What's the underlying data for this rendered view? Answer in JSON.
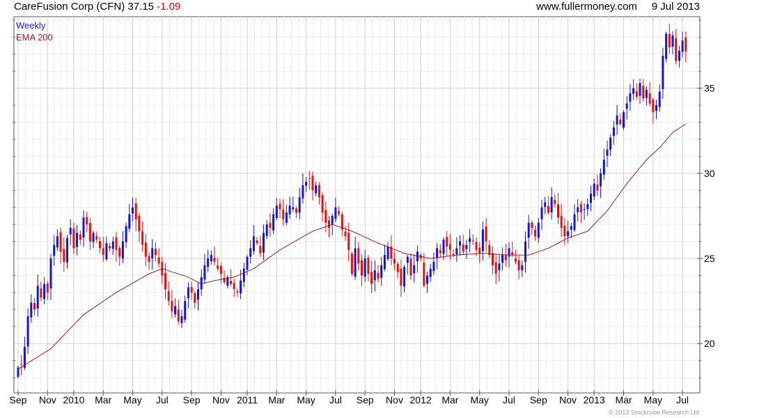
{
  "header": {
    "company": "CareFusion Corp (CFN)",
    "price": "37.15",
    "change": "-1.09",
    "website": "www.fullermoney.com",
    "date": "9 Jul 2013"
  },
  "legend": {
    "period": "Weekly",
    "indicator": "EMA 200"
  },
  "copyright": "© 2013 Stockcube Research Ltd",
  "colors": {
    "up": "#1414d2",
    "down": "#e01414",
    "ema": "#9c1c1c",
    "grid": "#cfcfcf",
    "minor_grid": "#ececec"
  },
  "chart_data": {
    "type": "candlestick",
    "period": "Weekly",
    "ylim": [
      17.1,
      39.2
    ],
    "y_ticks": [
      20,
      25,
      30,
      35
    ],
    "y_axis_side": "right",
    "grid": true,
    "x_ticks": [
      {
        "label": "Sep",
        "week": 0
      },
      {
        "label": "Nov",
        "week": 9
      },
      {
        "label": "2010",
        "week": 17
      },
      {
        "label": "Mar",
        "week": 26
      },
      {
        "label": "May",
        "week": 35
      },
      {
        "label": "Jul",
        "week": 44
      },
      {
        "label": "Sep",
        "week": 53
      },
      {
        "label": "Nov",
        "week": 62
      },
      {
        "label": "2011",
        "week": 70
      },
      {
        "label": "Mar",
        "week": 79
      },
      {
        "label": "May",
        "week": 88
      },
      {
        "label": "Jul",
        "week": 97
      },
      {
        "label": "Sep",
        "week": 106
      },
      {
        "label": "Nov",
        "week": 115
      },
      {
        "label": "2012",
        "week": 123
      },
      {
        "label": "Mar",
        "week": 132
      },
      {
        "label": "May",
        "week": 141
      },
      {
        "label": "Jul",
        "week": 150
      },
      {
        "label": "Sep",
        "week": 159
      },
      {
        "label": "Nov",
        "week": 168
      },
      {
        "label": "2013",
        "week": 176
      },
      {
        "label": "Mar",
        "week": 185
      },
      {
        "label": "May",
        "week": 194
      },
      {
        "label": "Jul",
        "week": 203
      }
    ],
    "close_anchors": [
      [
        0,
        18.6
      ],
      [
        1,
        18.8
      ],
      [
        2,
        19.8
      ],
      [
        3,
        21.6
      ],
      [
        4,
        22.4
      ],
      [
        5,
        22.0
      ],
      [
        6,
        23.4
      ],
      [
        7,
        22.7
      ],
      [
        8,
        23.5
      ],
      [
        9,
        23.0
      ],
      [
        10,
        25.0
      ],
      [
        11,
        25.8
      ],
      [
        12,
        26.3
      ],
      [
        13,
        25.4
      ],
      [
        14,
        24.8
      ],
      [
        15,
        26.2
      ],
      [
        16,
        26.8
      ],
      [
        17,
        25.6
      ],
      [
        18,
        26.5
      ],
      [
        19,
        26.1
      ],
      [
        20,
        27.4
      ],
      [
        21,
        27.0
      ],
      [
        22,
        26.0
      ],
      [
        23,
        26.5
      ],
      [
        24,
        26.1
      ],
      [
        25,
        25.6
      ],
      [
        26,
        25.2
      ],
      [
        27,
        25.9
      ],
      [
        28,
        25.6
      ],
      [
        29,
        26.0
      ],
      [
        30,
        25.5
      ],
      [
        31,
        25.1
      ],
      [
        32,
        26.0
      ],
      [
        33,
        26.9
      ],
      [
        34,
        27.6
      ],
      [
        35,
        28.0
      ],
      [
        36,
        27.3
      ],
      [
        37,
        26.6
      ],
      [
        38,
        25.8
      ],
      [
        39,
        25.1
      ],
      [
        40,
        24.8
      ],
      [
        41,
        25.6
      ],
      [
        42,
        25.2
      ],
      [
        43,
        24.7
      ],
      [
        44,
        24.0
      ],
      [
        45,
        23.2
      ],
      [
        46,
        22.5
      ],
      [
        47,
        21.9
      ],
      [
        48,
        22.2
      ],
      [
        49,
        21.3
      ],
      [
        50,
        21.6
      ],
      [
        51,
        22.5
      ],
      [
        52,
        23.3
      ],
      [
        53,
        23.0
      ],
      [
        54,
        22.4
      ],
      [
        55,
        23.2
      ],
      [
        56,
        23.9
      ],
      [
        57,
        24.6
      ],
      [
        58,
        25.0
      ],
      [
        59,
        25.2
      ],
      [
        60,
        24.8
      ],
      [
        61,
        24.4
      ],
      [
        62,
        24.1
      ],
      [
        63,
        23.6
      ],
      [
        64,
        23.9
      ],
      [
        65,
        23.5
      ],
      [
        66,
        23.2
      ],
      [
        67,
        23.0
      ],
      [
        68,
        23.7
      ],
      [
        69,
        24.4
      ],
      [
        70,
        25.1
      ],
      [
        71,
        25.6
      ],
      [
        72,
        26.3
      ],
      [
        73,
        25.9
      ],
      [
        74,
        25.3
      ],
      [
        75,
        26.5
      ],
      [
        76,
        27.0
      ],
      [
        77,
        26.8
      ],
      [
        78,
        27.6
      ],
      [
        79,
        28.1
      ],
      [
        80,
        27.9
      ],
      [
        81,
        27.3
      ],
      [
        82,
        27.7
      ],
      [
        83,
        28.1
      ],
      [
        84,
        28.0
      ],
      [
        85,
        27.7
      ],
      [
        86,
        28.6
      ],
      [
        87,
        29.3
      ],
      [
        88,
        29.5
      ],
      [
        89,
        29.7
      ],
      [
        90,
        29.0
      ],
      [
        91,
        29.3
      ],
      [
        92,
        28.6
      ],
      [
        93,
        27.7
      ],
      [
        94,
        27.1
      ],
      [
        95,
        26.8
      ],
      [
        96,
        27.5
      ],
      [
        97,
        28.0
      ],
      [
        98,
        27.6
      ],
      [
        99,
        26.7
      ],
      [
        100,
        26.3
      ],
      [
        101,
        25.5
      ],
      [
        102,
        24.1
      ],
      [
        103,
        25.6
      ],
      [
        104,
        24.7
      ],
      [
        105,
        24.0
      ],
      [
        106,
        25.0
      ],
      [
        107,
        24.1
      ],
      [
        108,
        23.5
      ],
      [
        109,
        24.3
      ],
      [
        110,
        23.8
      ],
      [
        111,
        24.6
      ],
      [
        112,
        25.2
      ],
      [
        113,
        25.7
      ],
      [
        114,
        25.0
      ],
      [
        115,
        24.7
      ],
      [
        116,
        24.2
      ],
      [
        117,
        23.4
      ],
      [
        118,
        24.5
      ],
      [
        119,
        25.1
      ],
      [
        120,
        24.0
      ],
      [
        121,
        24.6
      ],
      [
        122,
        25.4
      ],
      [
        123,
        25.0
      ],
      [
        124,
        23.4
      ],
      [
        125,
        24.0
      ],
      [
        126,
        24.4
      ],
      [
        127,
        24.8
      ],
      [
        128,
        25.6
      ],
      [
        129,
        25.3
      ],
      [
        130,
        26.1
      ],
      [
        131,
        25.7
      ],
      [
        132,
        25.5
      ],
      [
        133,
        25.2
      ],
      [
        134,
        25.6
      ],
      [
        135,
        26.0
      ],
      [
        136,
        25.4
      ],
      [
        137,
        25.8
      ],
      [
        138,
        26.2
      ],
      [
        139,
        26.0
      ],
      [
        140,
        25.5
      ],
      [
        141,
        25.3
      ],
      [
        142,
        26.7
      ],
      [
        143,
        26.0
      ],
      [
        144,
        25.2
      ],
      [
        145,
        24.6
      ],
      [
        146,
        24.1
      ],
      [
        147,
        24.7
      ],
      [
        148,
        25.2
      ],
      [
        149,
        24.9
      ],
      [
        150,
        25.6
      ],
      [
        151,
        25.2
      ],
      [
        152,
        24.8
      ],
      [
        153,
        24.3
      ],
      [
        154,
        24.6
      ],
      [
        155,
        26.0
      ],
      [
        156,
        27.1
      ],
      [
        157,
        26.8
      ],
      [
        158,
        26.3
      ],
      [
        159,
        27.1
      ],
      [
        160,
        28.0
      ],
      [
        161,
        28.3
      ],
      [
        162,
        27.7
      ],
      [
        163,
        28.6
      ],
      [
        164,
        28.2
      ],
      [
        165,
        27.4
      ],
      [
        166,
        26.8
      ],
      [
        167,
        26.3
      ],
      [
        168,
        26.6
      ],
      [
        169,
        26.9
      ],
      [
        170,
        27.6
      ],
      [
        171,
        28.0
      ],
      [
        172,
        27.7
      ],
      [
        173,
        27.9
      ],
      [
        174,
        28.2
      ],
      [
        175,
        28.8
      ],
      [
        176,
        29.4
      ],
      [
        177,
        29.0
      ],
      [
        178,
        30.0
      ],
      [
        179,
        30.8
      ],
      [
        180,
        31.4
      ],
      [
        181,
        32.1
      ],
      [
        182,
        32.7
      ],
      [
        183,
        33.4
      ],
      [
        184,
        32.9
      ],
      [
        185,
        33.6
      ],
      [
        186,
        34.1
      ],
      [
        187,
        34.7
      ],
      [
        188,
        35.0
      ],
      [
        189,
        34.5
      ],
      [
        190,
        35.3
      ],
      [
        191,
        34.4
      ],
      [
        192,
        34.9
      ],
      [
        193,
        34.1
      ],
      [
        194,
        33.6
      ],
      [
        195,
        34.0
      ],
      [
        196,
        34.8
      ],
      [
        197,
        36.9
      ],
      [
        198,
        38.2
      ],
      [
        199,
        37.4
      ],
      [
        200,
        38.1
      ],
      [
        201,
        36.6
      ],
      [
        202,
        37.2
      ],
      [
        203,
        37.8
      ],
      [
        204,
        37.15
      ]
    ],
    "ema_anchors": [
      [
        0,
        18.5
      ],
      [
        10,
        19.7
      ],
      [
        20,
        21.7
      ],
      [
        30,
        23.0
      ],
      [
        40,
        24.1
      ],
      [
        44,
        24.4
      ],
      [
        52,
        23.9
      ],
      [
        56,
        23.5
      ],
      [
        60,
        23.7
      ],
      [
        66,
        23.9
      ],
      [
        72,
        24.4
      ],
      [
        80,
        25.5
      ],
      [
        90,
        26.6
      ],
      [
        96,
        27.0
      ],
      [
        102,
        26.6
      ],
      [
        110,
        25.9
      ],
      [
        118,
        25.3
      ],
      [
        126,
        25.0
      ],
      [
        134,
        25.2
      ],
      [
        142,
        25.3
      ],
      [
        150,
        25.2
      ],
      [
        156,
        25.2
      ],
      [
        162,
        25.6
      ],
      [
        168,
        26.2
      ],
      [
        174,
        26.6
      ],
      [
        180,
        27.8
      ],
      [
        186,
        29.4
      ],
      [
        192,
        30.8
      ],
      [
        196,
        31.5
      ],
      [
        200,
        32.4
      ],
      [
        204,
        32.9
      ]
    ]
  }
}
